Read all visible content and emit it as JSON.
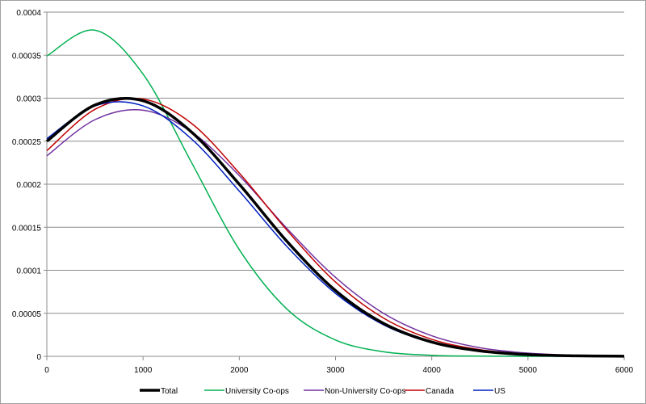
{
  "chart_data": {
    "type": "line",
    "title": "",
    "xlabel": "",
    "ylabel": "",
    "xlim": [
      0,
      6000
    ],
    "ylim": [
      0,
      0.0004
    ],
    "xticks": [
      0,
      1000,
      2000,
      3000,
      4000,
      5000,
      6000
    ],
    "yticks": [
      0,
      5e-05,
      0.0001,
      0.00015,
      0.0002,
      0.00025,
      0.0003,
      0.00035,
      0.0004
    ],
    "ytick_labels": [
      "0",
      "0.00005",
      "0.0001",
      "0.00015",
      "0.0002",
      "0.00025",
      "0.0003",
      "0.00035",
      "0.0004"
    ],
    "grid": "horizontal",
    "legend_position": "bottom",
    "x": [
      0,
      500,
      1000,
      1500,
      2000,
      2500,
      3000,
      3500,
      4000,
      4500,
      5000,
      5500,
      6000
    ],
    "series": [
      {
        "name": "Total",
        "color": "#000000",
        "values": [
          0.00025,
          0.000292,
          0.000297,
          0.000261,
          0.0002,
          0.000133,
          7.64e-05,
          3.82e-05,
          1.66e-05,
          6.3e-06,
          2e-06,
          5.8e-07,
          1.4e-07
        ]
      },
      {
        "name": "University Co-ops",
        "color": "#00b050",
        "values": [
          0.000349,
          0.000379,
          0.000328,
          0.000226,
          0.000124,
          5.44e-05,
          1.9e-05,
          5.3e-06,
          1.2e-06,
          2e-07,
          3e-08,
          0,
          0
        ]
      },
      {
        "name": "Non-University Co-ops",
        "color": "#7030a0",
        "values": [
          0.000233,
          0.000275,
          0.000286,
          0.000261,
          0.00021,
          0.000148,
          9.17e-05,
          4.99e-05,
          2.39e-05,
          1e-05,
          3.7e-06,
          1.2e-06,
          3.4e-07
        ]
      },
      {
        "name": "Canada",
        "color": "#c00000",
        "values": [
          0.000239,
          0.000287,
          0.000299,
          0.000271,
          0.000213,
          0.000146,
          8.63e-05,
          4.44e-05,
          1.98e-05,
          7.7e-06,
          2.6e-06,
          7.6e-07,
          1.9e-07
        ]
      },
      {
        "name": "US",
        "color": "#0020c0",
        "values": [
          0.000253,
          0.000291,
          0.000291,
          0.000253,
          0.000192,
          0.000127,
          7.31e-05,
          3.66e-05,
          1.6e-05,
          6.1e-06,
          2e-06,
          5e-07,
          1e-07
        ]
      }
    ]
  }
}
